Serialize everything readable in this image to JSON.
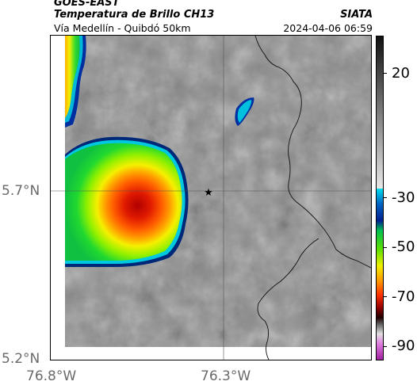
{
  "header": {
    "satellite": "GOES-EAST",
    "product": "Temperatura de Brillo CH13",
    "location": "Vía Medellín - Quibdó 50km",
    "organization": "SIATA",
    "datetime": "2024-04-06 06:59"
  },
  "map": {
    "latitude_labels": [
      "5.7°N",
      "5.2°N"
    ],
    "longitude_labels": [
      "76.8°W",
      "76.3°W"
    ],
    "marker": "star-marker",
    "gridlines": true
  },
  "colorbar": {
    "tick_labels": [
      "20",
      "-30",
      "-50",
      "-70",
      "-90"
    ],
    "tick_values": [
      20,
      -30,
      -50,
      -70,
      -90
    ],
    "range": [
      -95,
      35
    ],
    "colors": {
      "warm": "#8a8a8a",
      "cyan": "#00c8e0",
      "blue": "#0030a0",
      "green": "#20e020",
      "yellow": "#f0f000",
      "orange": "#ff8000",
      "red": "#e01000",
      "dark": "#400000",
      "pink": "#d040c0"
    }
  }
}
